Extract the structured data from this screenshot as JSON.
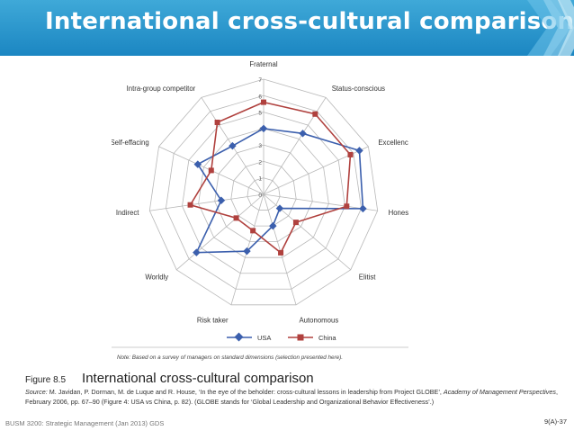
{
  "title": "International cross-cultural comparison",
  "caption": {
    "figure_number": "Figure 8.5",
    "figure_title": "International cross-cultural comparison",
    "source_label": "Source:",
    "source_text": "M. Javidan, P. Dorman, M. de Luque and R. House, ‘In the eye of the beholder: cross-cultural lessons in leadership from Project GLOBE’,",
    "source_journal": "Academy of Management Perspectives",
    "source_tail": ", February 2006, pp. 67–90 (Figure 4: USA vs China, p. 82). (GLOBE stands for ‘Global Leadership and Organizational Behavior Effectiveness’.)"
  },
  "note": "Note: Based on a survey of managers on standard dimensions (selection presented here).",
  "footer": {
    "course": "BUSM 3200: Strategic Management (Jan 2013) GDS",
    "page": "9(A)-37"
  },
  "colors": {
    "usa": "#3b5fad",
    "china": "#b0413e",
    "grid": "#b8b8b8",
    "title_bar": "#2596cf"
  },
  "chart_data": {
    "type": "radar",
    "categories": [
      "Fraternal",
      "Status-conscious",
      "Excellence-oriented",
      "Honest",
      "Elitist",
      "Autonomous",
      "Risk taker",
      "Worldly",
      "Indirect",
      "Self-effacing",
      "Intra-group competitor"
    ],
    "ticks": [
      "0",
      "1",
      "2",
      "3",
      "4",
      "5",
      "6",
      "7"
    ],
    "range": [
      0,
      7
    ],
    "series": [
      {
        "name": "USA",
        "marker": "diamond",
        "values": [
          4.0,
          4.4,
          6.4,
          6.1,
          1.3,
          2.0,
          3.6,
          5.4,
          2.6,
          4.4,
          3.5
        ]
      },
      {
        "name": "China",
        "marker": "square",
        "values": [
          5.6,
          5.8,
          5.8,
          5.1,
          2.6,
          3.7,
          2.3,
          2.2,
          4.5,
          3.5,
          5.2
        ]
      }
    ],
    "legend_position": "bottom-center"
  }
}
